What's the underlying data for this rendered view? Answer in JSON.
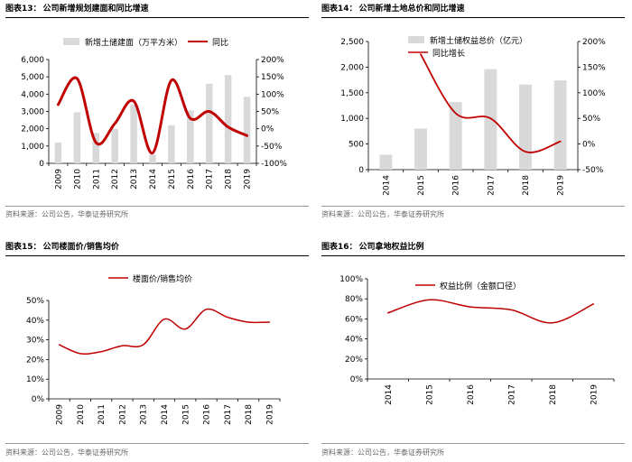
{
  "colors": {
    "bar": "#d9d9d9",
    "line": "#c00000",
    "axis": "#000000"
  },
  "source_text": "资料来源：公司公告，华泰证券研究所",
  "chart_data": [
    {
      "id": "c13",
      "type": "bar+line",
      "header": {
        "num": "图表13：",
        "title": "公司新增规划建面和同比增速"
      },
      "x": [
        "2009",
        "2010",
        "2011",
        "2012",
        "2013",
        "2014",
        "2015",
        "2016",
        "2017",
        "2018",
        "2019"
      ],
      "series": [
        {
          "name": "新增土储建面（万平方米）",
          "kind": "bar",
          "axis": "left",
          "values": [
            1200,
            2950,
            1750,
            2000,
            3400,
            500,
            2200,
            3050,
            4600,
            5100,
            3850
          ]
        },
        {
          "name": "同比",
          "kind": "line",
          "axis": "right",
          "values": [
            70,
            145,
            -40,
            15,
            80,
            -70,
            140,
            30,
            50,
            5,
            -20
          ]
        }
      ],
      "left_axis": {
        "min": 0,
        "max": 6000,
        "ticks": [
          "0",
          "1,000",
          "2,000",
          "3,000",
          "4,000",
          "5,000",
          "6,000"
        ]
      },
      "right_axis": {
        "min": -100,
        "max": 200,
        "ticks": [
          "-100%",
          "-50%",
          "0%",
          "50%",
          "100%",
          "150%",
          "200%"
        ]
      },
      "legend_position": "top"
    },
    {
      "id": "c14",
      "type": "bar+line",
      "header": {
        "num": "图表14：",
        "title": "公司新增土地总价和同比增速"
      },
      "x": [
        "2014",
        "2015",
        "2016",
        "2017",
        "2018",
        "2019"
      ],
      "series": [
        {
          "name": "新增土储权益总价（亿元）",
          "kind": "bar",
          "axis": "left",
          "values": [
            290,
            800,
            1320,
            1960,
            1660,
            1740
          ]
        },
        {
          "name": "同比增长",
          "kind": "line",
          "axis": "right",
          "values": [
            null,
            175,
            60,
            50,
            -15,
            5
          ]
        }
      ],
      "left_axis": {
        "min": 0,
        "max": 2500,
        "ticks": [
          "0",
          "500",
          "1,000",
          "1,500",
          "2,000",
          "2,500"
        ]
      },
      "right_axis": {
        "min": -50,
        "max": 200,
        "ticks": [
          "-50%",
          "0%",
          "50%",
          "100%",
          "150%",
          "200%"
        ]
      },
      "legend_position": "top"
    },
    {
      "id": "c15",
      "type": "line",
      "header": {
        "num": "图表15：",
        "title": "公司楼面价/销售均价"
      },
      "x": [
        "2009",
        "2010",
        "2011",
        "2012",
        "2013",
        "2014",
        "2015",
        "2016",
        "2017",
        "2018",
        "2019"
      ],
      "series": [
        {
          "name": "楼面价/销售均价",
          "kind": "line",
          "axis": "left",
          "values": [
            27.5,
            23,
            24,
            27,
            27.5,
            40.5,
            35.5,
            45.5,
            41.5,
            39,
            39
          ]
        }
      ],
      "left_axis": {
        "min": 0,
        "max": 50,
        "ticks": [
          "0%",
          "10%",
          "20%",
          "30%",
          "40%",
          "50%"
        ]
      },
      "legend_position": "top"
    },
    {
      "id": "c16",
      "type": "line",
      "header": {
        "num": "图表16：",
        "title": "公司拿地权益比例"
      },
      "x": [
        "2014",
        "2015",
        "2016",
        "2017",
        "2018",
        "2019"
      ],
      "series": [
        {
          "name": "权益比例（金额口径）",
          "kind": "line",
          "axis": "left",
          "values": [
            66,
            79,
            72,
            69,
            56,
            75
          ]
        }
      ],
      "left_axis": {
        "min": 0,
        "max": 100,
        "ticks": [
          "0%",
          "20%",
          "40%",
          "60%",
          "80%",
          "100%"
        ]
      },
      "legend_position": "top"
    }
  ]
}
